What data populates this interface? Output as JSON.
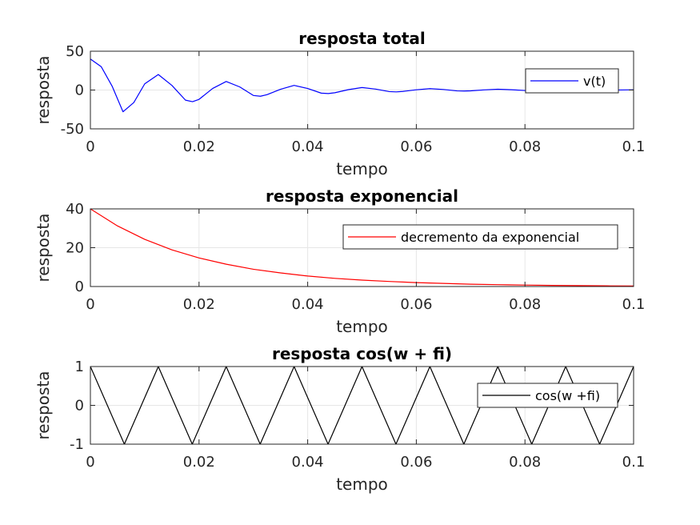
{
  "chart_data": [
    {
      "type": "line",
      "title": "resposta total",
      "xlabel": "tempo",
      "ylabel": "resposta",
      "xlim": [
        0,
        0.1
      ],
      "ylim": [
        -50,
        50
      ],
      "xticks": [
        0,
        0.02,
        0.04,
        0.06,
        0.08,
        0.1
      ],
      "xtick_labels": [
        "0",
        "0.02",
        "0.04",
        "0.06",
        "0.08",
        "0.1"
      ],
      "yticks": [
        -50,
        0,
        50
      ],
      "ytick_labels": [
        "-50",
        "0",
        "50"
      ],
      "grid": true,
      "legend": "right",
      "color": "#0000ff",
      "series": [
        {
          "name": "v(t)",
          "color": "#0000ff",
          "x": [
            0,
            0.002,
            0.004,
            0.006,
            0.008,
            0.01,
            0.0125,
            0.015,
            0.0175,
            0.0188,
            0.02,
            0.0225,
            0.025,
            0.0275,
            0.03,
            0.0313,
            0.0325,
            0.035,
            0.0375,
            0.04,
            0.0425,
            0.0438,
            0.045,
            0.0475,
            0.05,
            0.0525,
            0.055,
            0.0563,
            0.0575,
            0.06,
            0.0625,
            0.065,
            0.0675,
            0.0688,
            0.07,
            0.0725,
            0.075,
            0.0775,
            0.08,
            0.0813,
            0.0825,
            0.085,
            0.0875,
            0.09,
            0.0925,
            0.0938,
            0.095,
            0.0975,
            0.1
          ],
          "y": [
            40,
            30,
            5,
            -28,
            -16,
            8,
            20,
            6,
            -13,
            -15,
            -12,
            2,
            11,
            4,
            -7,
            -8,
            -6,
            1,
            6,
            2,
            -4,
            -4.5,
            -3.5,
            0.5,
            3.2,
            1.2,
            -2,
            -2.4,
            -1.8,
            0.3,
            1.8,
            0.7,
            -1.1,
            -1.3,
            -1,
            0.2,
            1,
            0.4,
            -0.6,
            -0.7,
            -0.5,
            0.1,
            0.5,
            0.2,
            -0.3,
            -0.35,
            -0.3,
            0.05,
            0.3
          ]
        }
      ]
    },
    {
      "type": "line",
      "title": "resposta exponencial",
      "xlabel": "tempo",
      "ylabel": "resposta",
      "xlim": [
        0,
        0.1
      ],
      "ylim": [
        0,
        40
      ],
      "xticks": [
        0,
        0.02,
        0.04,
        0.06,
        0.08,
        0.1
      ],
      "xtick_labels": [
        "0",
        "0.02",
        "0.04",
        "0.06",
        "0.08",
        "0.1"
      ],
      "yticks": [
        0,
        20,
        40
      ],
      "ytick_labels": [
        "0",
        "20",
        "40"
      ],
      "grid": true,
      "legend": "top-right",
      "color": "#ff0000",
      "series": [
        {
          "name": "decremento da exponencial",
          "color": "#ff0000",
          "x": [
            0,
            0.005,
            0.01,
            0.015,
            0.02,
            0.025,
            0.03,
            0.035,
            0.04,
            0.045,
            0.05,
            0.055,
            0.06,
            0.065,
            0.07,
            0.075,
            0.08,
            0.085,
            0.09,
            0.095,
            0.1
          ],
          "y": [
            40,
            31.2,
            24.3,
            18.9,
            14.7,
            11.5,
            8.9,
            7.0,
            5.4,
            4.2,
            3.3,
            2.6,
            2.0,
            1.6,
            1.2,
            0.96,
            0.75,
            0.58,
            0.45,
            0.35,
            0.28
          ]
        }
      ]
    },
    {
      "type": "line",
      "title": "resposta cos(w + fi)",
      "xlabel": "tempo",
      "ylabel": "resposta",
      "xlim": [
        0,
        0.1
      ],
      "ylim": [
        -1,
        1
      ],
      "xticks": [
        0,
        0.02,
        0.04,
        0.06,
        0.08,
        0.1
      ],
      "xtick_labels": [
        "0",
        "0.02",
        "0.04",
        "0.06",
        "0.08",
        "0.1"
      ],
      "yticks": [
        -1,
        0,
        1
      ],
      "ytick_labels": [
        "-1",
        "0",
        "1"
      ],
      "grid": true,
      "legend": "right",
      "color": "#000000",
      "series": [
        {
          "name": "cos(w +fi)",
          "color": "#000000",
          "x": [
            0,
            0.003125,
            0.00625,
            0.009375,
            0.0125,
            0.015625,
            0.01875,
            0.021875,
            0.025,
            0.028125,
            0.03125,
            0.034375,
            0.0375,
            0.040625,
            0.04375,
            0.046875,
            0.05,
            0.053125,
            0.05625,
            0.059375,
            0.0625,
            0.065625,
            0.06875,
            0.071875,
            0.075,
            0.078125,
            0.08125,
            0.084375,
            0.0875,
            0.090625,
            0.09375,
            0.096875,
            0.1
          ],
          "y": [
            1,
            0,
            -1,
            0,
            1,
            0,
            -1,
            0,
            1,
            0,
            -1,
            0,
            1,
            0,
            -1,
            0,
            1,
            0,
            -1,
            0,
            1,
            0,
            -1,
            0,
            1,
            0,
            -1,
            0,
            1,
            0,
            -1,
            0,
            1
          ]
        }
      ]
    }
  ]
}
